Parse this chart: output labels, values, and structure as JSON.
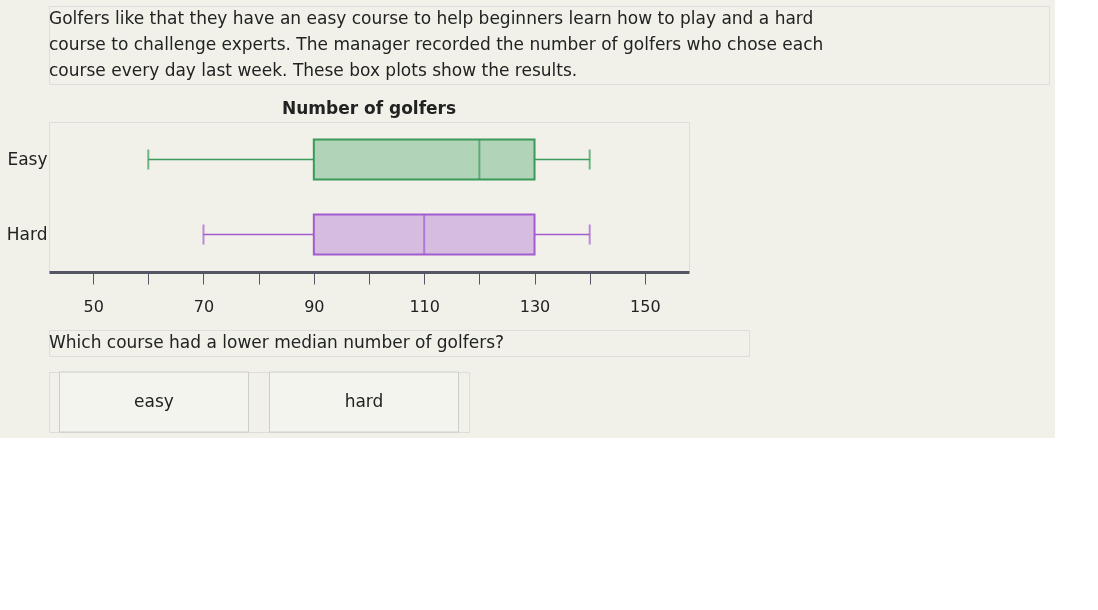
{
  "chart_data": {
    "type": "box",
    "orientation": "horizontal",
    "title": "Number of golfers",
    "categories": [
      "Easy",
      "Hard"
    ],
    "boxes": [
      {
        "low": 60,
        "q1": 90,
        "median": 120,
        "q3": 130,
        "high": 140
      },
      {
        "low": 70,
        "q1": 90,
        "median": 110,
        "q3": 130,
        "high": 140
      }
    ],
    "colors": [
      "#3a9a5a",
      "#a35ccf"
    ],
    "xlim": [
      42,
      158
    ],
    "xticks": [
      50,
      {
        "value": 60,
        "label": null
      },
      70,
      {
        "value": 80,
        "label": null
      },
      90,
      {
        "value": 100,
        "label": null
      },
      110,
      {
        "value": 120,
        "label": null
      },
      130,
      {
        "value": 140,
        "label": null
      },
      150
    ],
    "grid": false,
    "annotations": [
      "Golfers like that they have an easy course to help beginners learn how to play and a hard course to challenge experts. The manager recorded the number of golfers who chose each course every day last week. These box plots show the results.",
      "Which course had a lower median number of golfers?",
      "easy",
      "hard"
    ]
  }
}
